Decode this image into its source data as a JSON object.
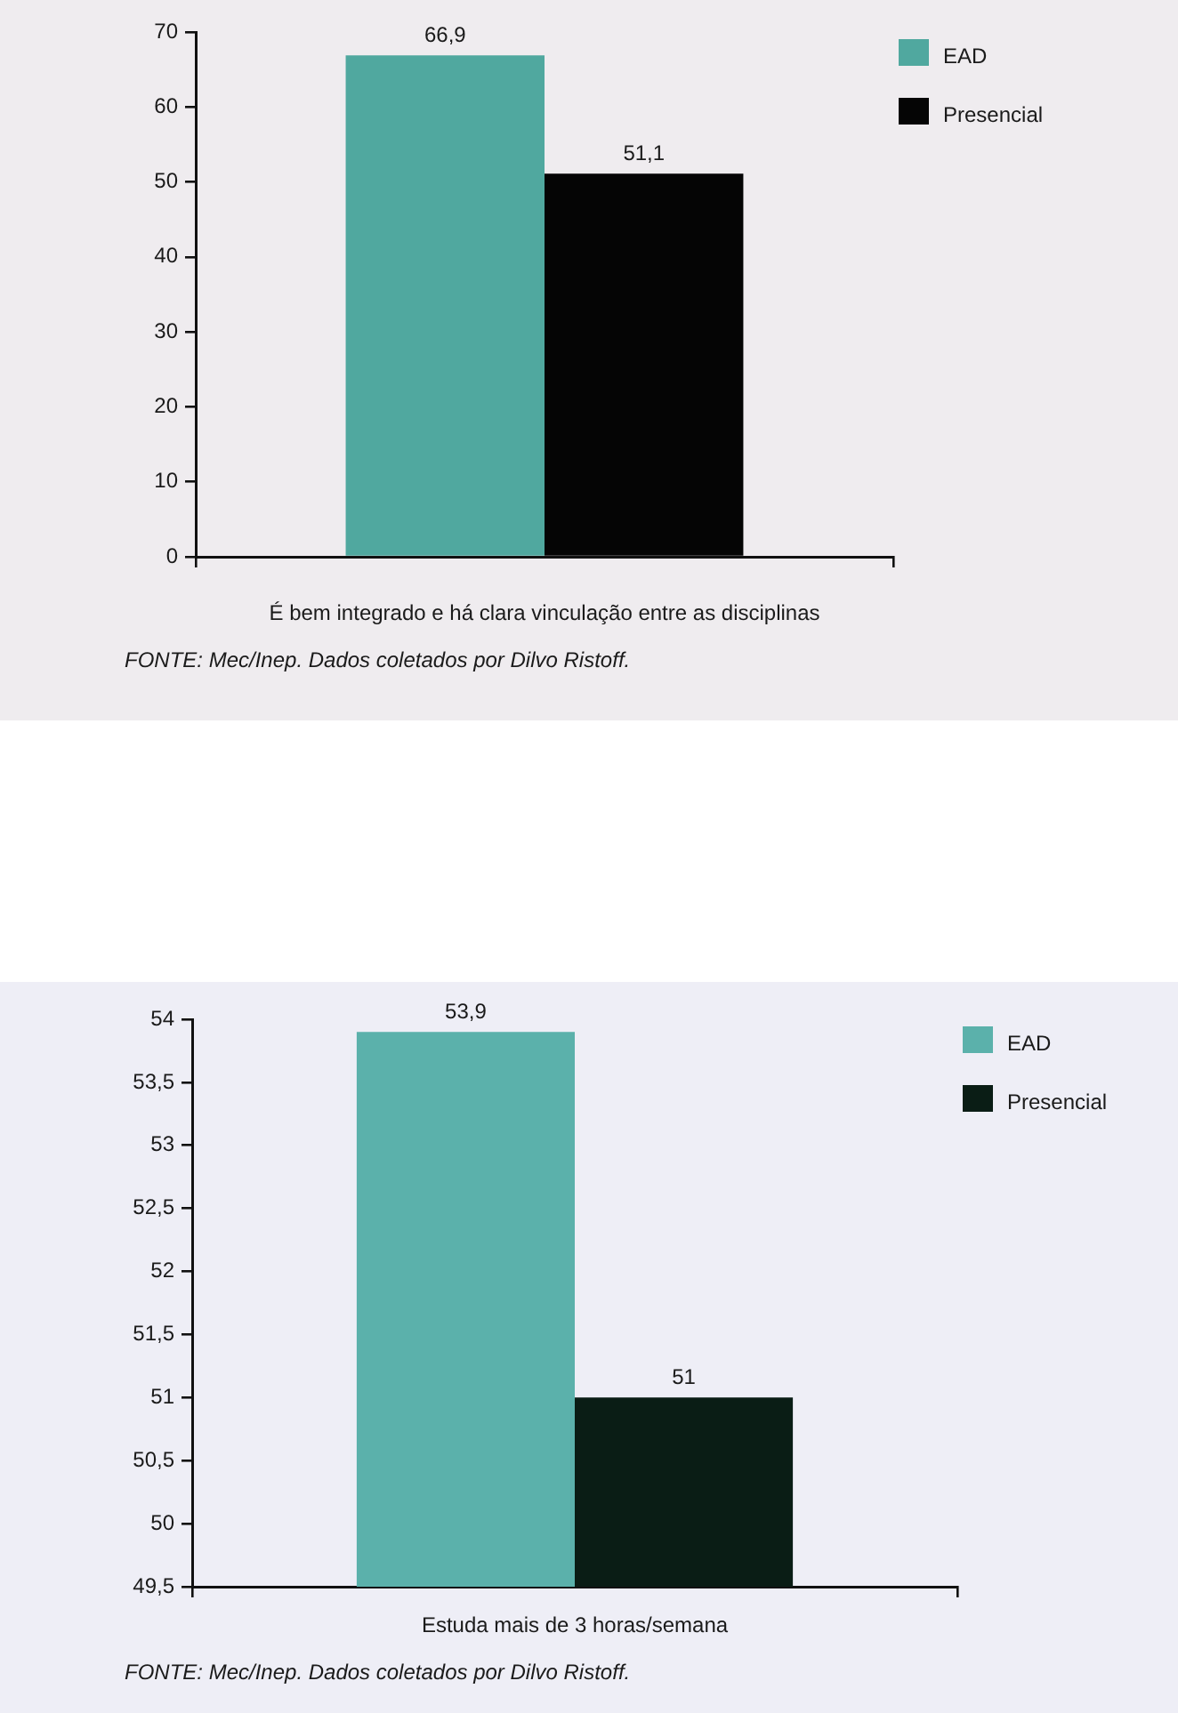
{
  "chart_data": [
    {
      "type": "bar",
      "categories": [
        "É bem integrado e há clara vinculação entre as disciplinas"
      ],
      "series": [
        {
          "name": "EAD",
          "color": "#50a89f",
          "values": [
            66.9
          ],
          "value_labels": [
            "66,9"
          ]
        },
        {
          "name": "Presencial",
          "color": "#050505",
          "values": [
            51.1
          ],
          "value_labels": [
            "51,1"
          ]
        }
      ],
      "ylim": [
        0,
        70
      ],
      "yticks": [
        0,
        10,
        20,
        30,
        40,
        50,
        60,
        70
      ],
      "legend": "top right",
      "annotations": [
        "FONTE: Mec/Inep. Dados coletados por Dilvo Ristoff."
      ]
    },
    {
      "type": "bar",
      "categories": [
        "Estuda mais de 3 horas/semana"
      ],
      "series": [
        {
          "name": "EAD",
          "color": "#5bb1ab",
          "values": [
            53.9
          ],
          "value_labels": [
            "53,9"
          ]
        },
        {
          "name": "Presencial",
          "color": "#0a1d15",
          "values": [
            51
          ],
          "value_labels": [
            "51"
          ]
        }
      ],
      "ylim": [
        49.5,
        54
      ],
      "yticks": [
        {
          "value": 49.5,
          "label": "49,5"
        },
        50,
        {
          "value": 50.5,
          "label": "50,5"
        },
        51,
        {
          "value": 51.5,
          "label": "51,5"
        },
        52,
        {
          "value": 52.5,
          "label": "52,5"
        },
        53,
        {
          "value": 53.5,
          "label": "53,5"
        },
        54
      ],
      "legend": "top right",
      "annotations": [
        "FONTE: Mec/Inep. Dados coletados por Dilvo Ristoff."
      ]
    }
  ]
}
